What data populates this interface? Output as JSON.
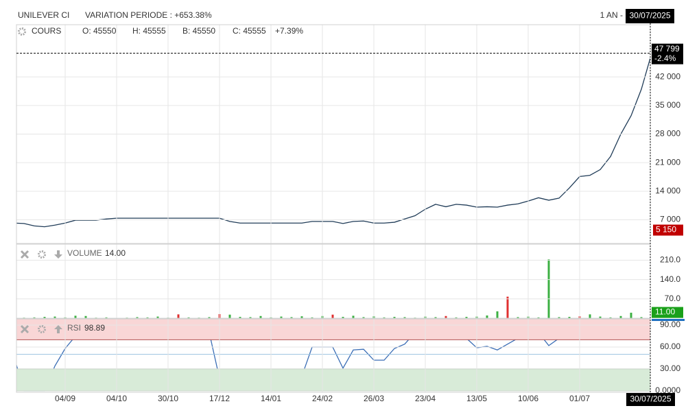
{
  "header": {
    "name": "UNILEVER CI",
    "variation": "VARIATION PERIODE : +653.38%",
    "period": "1 AN -",
    "date": "30/07/2025"
  },
  "chart_data": [
    {
      "type": "line",
      "title": "COURS",
      "ohlc": [
        "O: 45550",
        "H: 45555",
        "B: 45550",
        "C: 45555"
      ],
      "change": "+7.39%",
      "color": "#1f3b57",
      "values": [
        6200,
        6100,
        5500,
        5300,
        5700,
        6200,
        6900,
        6900,
        6900,
        7200,
        7400,
        7400,
        7400,
        7400,
        7400,
        7400,
        7400,
        7400,
        7400,
        7400,
        7400,
        6600,
        6200,
        6200,
        6200,
        6200,
        6200,
        6200,
        6200,
        6600,
        6600,
        6600,
        6100,
        6600,
        6700,
        6200,
        6200,
        6400,
        7200,
        8000,
        9600,
        10800,
        10200,
        10800,
        10600,
        10100,
        10200,
        10100,
        10600,
        10900,
        11600,
        12400,
        11800,
        12300,
        14800,
        17600,
        17900,
        19300,
        22500,
        28000,
        32500,
        39000,
        47799
      ],
      "ylim": [
        1200,
        54800
      ],
      "yticks": [
        {
          "value": 7000,
          "label": "7 000"
        },
        {
          "value": 14000,
          "label": "14 000"
        },
        {
          "value": 21000,
          "label": "21 000"
        },
        {
          "value": 28000,
          "label": "28 000"
        },
        {
          "value": 35000,
          "label": "35 000"
        },
        {
          "value": 42000,
          "label": "42 000"
        }
      ],
      "last_marker": {
        "value": 47799,
        "label": "47 799",
        "change": "-2.4%",
        "color": "#000000"
      },
      "low_marker": {
        "value": 5150,
        "label": "5 150",
        "color": "#c00000"
      },
      "grid": true
    },
    {
      "type": "bar",
      "title": "VOLUME",
      "title_value": "14.00",
      "values": [
        4,
        2,
        3,
        5,
        6,
        3,
        9,
        8,
        2,
        3,
        1,
        2,
        4,
        3,
        6,
        2,
        14,
        3,
        2,
        4,
        15,
        13,
        5,
        4,
        8,
        3,
        6,
        4,
        7,
        3,
        8,
        13,
        5,
        9,
        4,
        7,
        3,
        5,
        4,
        2,
        6,
        4,
        8,
        3,
        5,
        6,
        10,
        25,
        78,
        4,
        6,
        3,
        213,
        4,
        5,
        7,
        14,
        6,
        3,
        8,
        20,
        4,
        11
      ],
      "colors": [
        "#3cb043",
        "#3cb043",
        "#3cb043",
        "#3cb043",
        "#3cb043",
        "#3cb043",
        "#3cb043",
        "#3cb043",
        "#3cb043",
        "#3cb043",
        "#3cb043",
        "#3cb043",
        "#3cb043",
        "#3cb043",
        "#3cb043",
        "#3cb043",
        "#e03030",
        "#3cb043",
        "#3cb043",
        "#3cb043",
        "#e03030",
        "#3cb043",
        "#3cb043",
        "#3cb043",
        "#3cb043",
        "#3cb043",
        "#3cb043",
        "#3cb043",
        "#3cb043",
        "#3cb043",
        "#3cb043",
        "#e03030",
        "#3cb043",
        "#3cb043",
        "#3cb043",
        "#3cb043",
        "#3cb043",
        "#3cb043",
        "#3cb043",
        "#3cb043",
        "#3cb043",
        "#3cb043",
        "#e03030",
        "#3cb043",
        "#3cb043",
        "#3cb043",
        "#3cb043",
        "#3cb043",
        "#e03030",
        "#3cb043",
        "#3cb043",
        "#3cb043",
        "#3cb043",
        "#3cb043",
        "#3cb043",
        "#e03030",
        "#3cb043",
        "#3cb043",
        "#3cb043",
        "#3cb043",
        "#3cb043",
        "#3cb043",
        "#3cb043"
      ],
      "ylim": [
        0,
        268
      ],
      "yticks": [
        {
          "value": 70,
          "label": "70.0"
        },
        {
          "value": 140,
          "label": "140.0"
        },
        {
          "value": 210,
          "label": "210.0"
        }
      ],
      "last_marker": {
        "value": 11,
        "label": "11.00",
        "color": "#1aa01a"
      },
      "grid": true
    },
    {
      "type": "line",
      "title": "RSI",
      "color": "#3a6db5",
      "values": [
        48,
        0,
        0,
        0,
        34,
        58,
        75,
        75,
        75,
        75,
        82,
        82,
        82,
        80,
        80,
        80,
        80,
        80,
        80,
        80,
        17,
        12,
        7,
        13,
        13,
        13,
        13,
        13,
        20,
        60,
        60,
        60,
        31,
        56,
        57,
        42,
        42,
        58,
        64,
        80,
        87,
        88,
        71,
        78,
        72,
        59,
        61,
        56,
        64,
        72,
        80,
        80,
        62,
        72,
        80,
        86,
        86,
        90,
        93,
        95,
        96,
        97,
        98.89
      ],
      "categories": [
        null,
        null,
        null,
        null,
        null,
        "04/09",
        null,
        null,
        null,
        null,
        "04/10",
        null,
        null,
        null,
        null,
        "30/10",
        null,
        null,
        null,
        null,
        "17/12",
        null,
        null,
        null,
        null,
        "14/01",
        null,
        null,
        null,
        null,
        "24/02",
        null,
        null,
        null,
        null,
        "26/03",
        null,
        null,
        null,
        null,
        "23/04",
        null,
        null,
        null,
        null,
        "13/05",
        null,
        null,
        null,
        null,
        "10/06",
        null,
        null,
        null,
        null,
        "01/07",
        null,
        null,
        null,
        null,
        null,
        null,
        "30/07/2025"
      ],
      "ylim": [
        -2,
        98.5
      ],
      "yticks": [
        {
          "value": 0,
          "label": "0.0000"
        },
        {
          "value": 30,
          "label": "30.00"
        },
        {
          "value": 60,
          "label": "60.00"
        },
        {
          "value": 90,
          "label": "90.00"
        }
      ],
      "bands": [
        {
          "from": 70,
          "to": 98.5,
          "color": "#f9d6d6",
          "edge": "#b05050"
        },
        {
          "from": 0,
          "to": 30,
          "color": "#d8ebd8",
          "edge": "#4f8f4f"
        }
      ],
      "levels": [
        50
      ],
      "grid": true
    }
  ]
}
